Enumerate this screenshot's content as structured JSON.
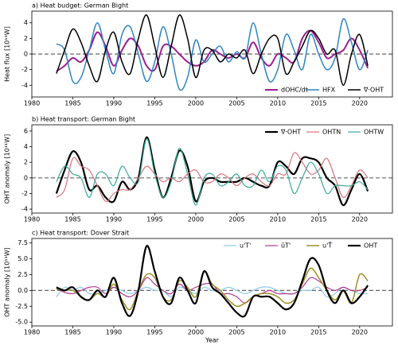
{
  "chart_data": [
    {
      "type": "line",
      "title": "a) Heat budget: German Bight",
      "ylabel": "Heat flux [10¹¹W]",
      "x": [
        1983,
        1984,
        1985,
        1986,
        1987,
        1988,
        1989,
        1990,
        1991,
        1992,
        1993,
        1994,
        1995,
        1996,
        1997,
        1998,
        1999,
        2000,
        2001,
        2002,
        2003,
        2004,
        2005,
        2006,
        2007,
        2008,
        2009,
        2010,
        2011,
        2012,
        2013,
        2014,
        2015,
        2016,
        2017,
        2018,
        2019,
        2020,
        2021
      ],
      "xlim": [
        1980,
        2024
      ],
      "xticks": [
        1980,
        1985,
        1990,
        1995,
        2000,
        2005,
        2010,
        2015,
        2020
      ],
      "ylim": [
        -5.5,
        5.5
      ],
      "yticks": [
        -4,
        -2,
        0,
        2,
        4
      ],
      "legend": "lower right",
      "series": [
        {
          "name": "dOHC/dt",
          "color": "#9b1f8f",
          "values": [
            -2.2,
            -1.5,
            -0.5,
            -1,
            0.5,
            2.8,
            1,
            -1.5,
            0.5,
            2,
            1,
            -1.5,
            -2,
            1,
            1,
            0,
            -1,
            -1.5,
            -1,
            0.5,
            0,
            -0.5,
            0,
            -0.5,
            1.5,
            -0.5,
            -1.5,
            0,
            -0.5,
            -1,
            2,
            3,
            1.5,
            -0.5,
            0,
            0.5,
            2,
            0.5,
            -1.8
          ]
        },
        {
          "name": "HFX",
          "color": "#2e86c1",
          "values": [
            1.3,
            0.5,
            -3.5,
            -3,
            0.5,
            4,
            0.5,
            -2.5,
            2.5,
            3.5,
            0,
            -3.5,
            -1,
            3.5,
            0,
            -4.5,
            -3,
            1.8,
            -1,
            0,
            1,
            -1,
            0.3,
            -0.5,
            4,
            0,
            -3.5,
            -2,
            2.5,
            0.5,
            -2,
            2.5,
            0,
            -2,
            -0.5,
            4.5,
            1.5,
            -2,
            0.5
          ]
        },
        {
          "name": "∇·OHT",
          "color": "#000000",
          "values": [
            -2.5,
            0.5,
            3.2,
            1.5,
            -1.5,
            -3.5,
            0.5,
            2.8,
            -1,
            -2.5,
            2,
            5,
            1,
            -3,
            1,
            5,
            2,
            -3,
            0.5,
            0.5,
            -1,
            0,
            -0.5,
            0.5,
            -2.5,
            0,
            2,
            2,
            -2.5,
            -1,
            1,
            3,
            2,
            0,
            0.5,
            -4,
            0,
            2.5,
            -1.5
          ]
        }
      ]
    },
    {
      "type": "line",
      "title": "b) Heat transport: German Bight",
      "ylabel": "OHT anomaly [10¹¹W]",
      "x": [
        1983,
        1984,
        1985,
        1986,
        1987,
        1988,
        1989,
        1990,
        1991,
        1992,
        1993,
        1994,
        1995,
        1996,
        1997,
        1998,
        1999,
        2000,
        2001,
        2002,
        2003,
        2004,
        2005,
        2006,
        2007,
        2008,
        2009,
        2010,
        2011,
        2012,
        2013,
        2014,
        2015,
        2016,
        2017,
        2018,
        2019,
        2020,
        2021
      ],
      "xlim": [
        1980,
        2024
      ],
      "xticks": [
        1980,
        1985,
        1990,
        1995,
        2000,
        2005,
        2010,
        2015,
        2020
      ],
      "ylim": [
        -4.5,
        6.8
      ],
      "yticks": [
        -4,
        -2,
        0,
        2,
        4,
        6
      ],
      "legend": "upper right",
      "series": [
        {
          "name": "∇·OHT",
          "color": "#000000",
          "values": [
            -2,
            1,
            3.4,
            2,
            -1.5,
            -1,
            -2.5,
            -3,
            -0.5,
            -1.5,
            0,
            5.2,
            1,
            -2.5,
            0,
            3.5,
            1.5,
            -3,
            -0.5,
            0,
            -0.5,
            -0.5,
            -0.5,
            0,
            -0.5,
            -1,
            -1,
            2,
            1.5,
            0.5,
            2.5,
            2.5,
            2,
            0,
            -1,
            -3.5,
            -1.5,
            0.5,
            -1.7
          ]
        },
        {
          "name": "OHTN",
          "color": "#d9737a",
          "values": [
            -2.5,
            -1.5,
            2.5,
            1.5,
            1,
            -1,
            -3,
            -2,
            -1.5,
            -1.5,
            0,
            1.5,
            0.5,
            -0.5,
            0,
            -0.5,
            0.5,
            1,
            -0.5,
            -0.5,
            0.5,
            0,
            -1,
            0,
            0.5,
            -0.5,
            -1,
            0.5,
            0.5,
            3.2,
            2,
            0.5,
            1,
            2.5,
            0,
            -2.5,
            -1,
            1,
            0
          ]
        },
        {
          "name": "OHTW",
          "color": "#3aab9a",
          "values": [
            -0.5,
            1.5,
            0.5,
            0,
            -2.5,
            0.5,
            0.5,
            -1,
            1.5,
            0,
            -0.5,
            5,
            0.5,
            -2.5,
            -0.5,
            3.8,
            0.5,
            -3.5,
            0,
            0.5,
            -1,
            -0.5,
            0.5,
            -1,
            -1,
            1,
            -0.5,
            1.5,
            1,
            -2,
            0,
            2,
            0.5,
            -2,
            -1,
            -1,
            -1,
            -0.5,
            -1.5
          ]
        }
      ]
    },
    {
      "type": "line",
      "title": "c) Heat transport: Dover Strait",
      "ylabel": "OHT anomaly [10¹¹W]",
      "xlabel": "Year",
      "x": [
        1983,
        1984,
        1985,
        1986,
        1987,
        1988,
        1989,
        1990,
        1991,
        1992,
        1993,
        1994,
        1995,
        1996,
        1997,
        1998,
        1999,
        2000,
        2001,
        2002,
        2003,
        2004,
        2005,
        2006,
        2007,
        2008,
        2009,
        2010,
        2011,
        2012,
        2013,
        2014,
        2015,
        2016,
        2017,
        2018,
        2019,
        2020,
        2021
      ],
      "xlim": [
        1980,
        2024
      ],
      "xticks": [
        1980,
        1985,
        1990,
        1995,
        2000,
        2005,
        2010,
        2015,
        2020
      ],
      "ylim": [
        -5.6,
        8.2
      ],
      "yticks": [
        {
          "value": -5,
          "label": "-5.0"
        },
        {
          "value": -2.5,
          "label": "-2.5"
        },
        {
          "value": 0,
          "label": "0.0"
        },
        2.5,
        {
          "value": 5,
          "label": "5.0"
        },
        7.5
      ],
      "legend": "upper right",
      "series": [
        {
          "name": "u'T'",
          "color": "#8ecae6",
          "values": [
            -1,
            0.5,
            0,
            0.5,
            -0.5,
            -0.5,
            0,
            0.5,
            0,
            -0.5,
            0,
            0.5,
            0,
            0,
            -1,
            0.5,
            0,
            -0.5,
            0.5,
            0,
            0,
            0.5,
            0,
            -0.5,
            0,
            0.5,
            0.5,
            0,
            -0.5,
            -0.5,
            0,
            0,
            0.5,
            -1,
            -0.5,
            0.5,
            0,
            -0.5,
            -0.5
          ]
        },
        {
          "name": "ūT'",
          "color": "#b03a8f",
          "values": [
            0.3,
            -0.3,
            -0.5,
            0,
            0.5,
            0.5,
            -0.5,
            0.5,
            -0.5,
            -1,
            0,
            2,
            1,
            0,
            -0.5,
            1,
            0,
            0.5,
            1,
            1,
            -0.5,
            -0.5,
            -1,
            -2,
            -1,
            -0.5,
            0,
            -0.5,
            -0.5,
            -0.5,
            0.5,
            2,
            1.5,
            0.5,
            0,
            0.5,
            0,
            0,
            0.5
          ]
        },
        {
          "name": "u'T̄",
          "color": "#9a8f24",
          "values": [
            0.2,
            0,
            0,
            -1,
            -1.5,
            -0.5,
            -1,
            1,
            -1.5,
            -3,
            0,
            2.5,
            2,
            -1,
            -1.5,
            1.5,
            0.5,
            -1,
            3,
            1,
            0,
            -1.5,
            -2.5,
            -2,
            -1,
            -0.5,
            -0.5,
            -1,
            -2,
            -1.5,
            1,
            3.5,
            2,
            0,
            -1.5,
            0,
            -2,
            2.5,
            1.5
          ]
        },
        {
          "name": "OHT",
          "color": "#000000",
          "values": [
            0.5,
            0,
            0.5,
            -1,
            -1.5,
            0,
            -1,
            2,
            -2,
            -4,
            0,
            7,
            3,
            -1,
            -2,
            2,
            0,
            -2,
            3,
            0.5,
            -0.5,
            -2,
            -3.5,
            -4,
            -1,
            -1,
            -1,
            -2,
            -3,
            -2,
            1.5,
            5,
            4,
            0,
            -2,
            0,
            -2,
            -1,
            0.8
          ]
        }
      ]
    }
  ]
}
